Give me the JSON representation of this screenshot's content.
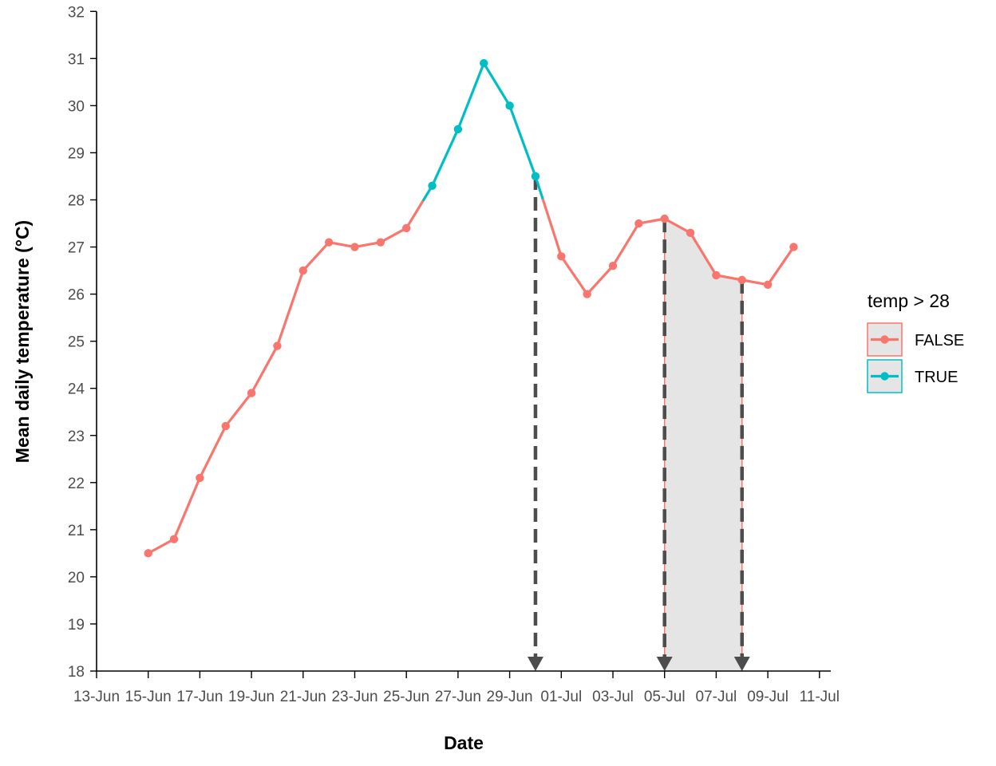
{
  "chart_data": {
    "type": "line",
    "xlabel": "Date",
    "ylabel": "Mean daily temperature (°C)",
    "ylim": [
      18,
      32
    ],
    "y_ticks": [
      18,
      19,
      20,
      21,
      22,
      23,
      24,
      25,
      26,
      27,
      28,
      29,
      30,
      31,
      32
    ],
    "x_ticks": [
      {
        "date": "2017-06-13",
        "label": "13-Jun"
      },
      {
        "date": "2017-06-15",
        "label": "15-Jun"
      },
      {
        "date": "2017-06-17",
        "label": "17-Jun"
      },
      {
        "date": "2017-06-19",
        "label": "19-Jun"
      },
      {
        "date": "2017-06-21",
        "label": "21-Jun"
      },
      {
        "date": "2017-06-23",
        "label": "23-Jun"
      },
      {
        "date": "2017-06-25",
        "label": "25-Jun"
      },
      {
        "date": "2017-06-27",
        "label": "27-Jun"
      },
      {
        "date": "2017-06-29",
        "label": "29-Jun"
      },
      {
        "date": "2017-07-01",
        "label": "01-Jul"
      },
      {
        "date": "2017-07-03",
        "label": "03-Jul"
      },
      {
        "date": "2017-07-05",
        "label": "05-Jul"
      },
      {
        "date": "2017-07-07",
        "label": "07-Jul"
      },
      {
        "date": "2017-07-09",
        "label": "09-Jul"
      },
      {
        "date": "2017-07-11",
        "label": "11-Jul"
      }
    ],
    "x": [
      "2017-06-15",
      "2017-06-16",
      "2017-06-17",
      "2017-06-18",
      "2017-06-19",
      "2017-06-20",
      "2017-06-21",
      "2017-06-22",
      "2017-06-23",
      "2017-06-24",
      "2017-06-25",
      "2017-06-26",
      "2017-06-27",
      "2017-06-28",
      "2017-06-29",
      "2017-06-30",
      "2017-07-01",
      "2017-07-02",
      "2017-07-03",
      "2017-07-04",
      "2017-07-05",
      "2017-07-06",
      "2017-07-07",
      "2017-07-08",
      "2017-07-09",
      "2017-07-10"
    ],
    "y": [
      20.5,
      20.8,
      22.1,
      23.2,
      23.9,
      24.9,
      26.5,
      27.1,
      27.0,
      27.1,
      27.4,
      28.3,
      29.5,
      30.9,
      30.0,
      28.5,
      26.8,
      26.0,
      26.6,
      27.5,
      27.6,
      27.3,
      26.4,
      26.3,
      26.2,
      27.0
    ],
    "series": [
      {
        "name": "FALSE",
        "color": "#F8766D",
        "condition": "temp <= 28"
      },
      {
        "name": "TRUE",
        "color": "#00BFC4",
        "condition": "temp > 28"
      }
    ],
    "legend": {
      "title": "temp > 28",
      "position": "right",
      "entries": [
        "FALSE",
        "TRUE"
      ]
    },
    "shaded_region": {
      "from": "2017-07-05",
      "to": "2017-07-08",
      "fill": "#e5e5e5"
    },
    "markers": [
      {
        "date": "2017-06-30",
        "style": "dashed-arrow"
      },
      {
        "date": "2017-07-05",
        "style": "dashed-arrow"
      },
      {
        "date": "2017-07-08",
        "style": "dashed-arrow"
      }
    ],
    "grid": false
  }
}
